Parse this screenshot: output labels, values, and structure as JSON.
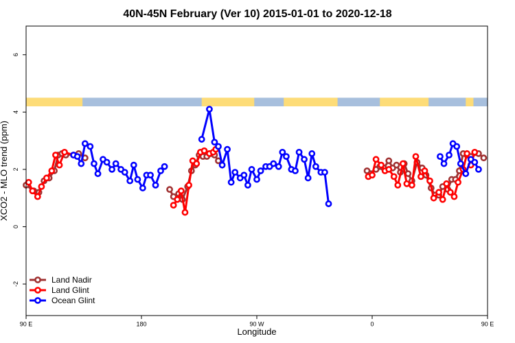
{
  "chart_data": {
    "type": "line",
    "title": "40N-45N February (Ver 10)   2015-01-01 to 2020-12-18",
    "xlabel": "Longitude",
    "ylabel": "XCO2 - MLO trend (ppm)",
    "xlim": [
      90,
      450
    ],
    "ylim": [
      -3.1,
      7.0
    ],
    "x_ticks": [
      {
        "value": 90,
        "label": "90 E"
      },
      {
        "value": 180,
        "label": "180"
      },
      {
        "value": 270,
        "label": "90 W"
      },
      {
        "value": 360,
        "label": "0"
      },
      {
        "value": 450,
        "label": "90 E"
      }
    ],
    "y_ticks": [
      -2,
      0,
      2,
      4,
      6
    ],
    "land_mask_band": {
      "y_range": [
        4.2,
        4.5
      ],
      "ocean_color": "#a7bfdd",
      "land_color": "#fddc78",
      "land_segments": [
        [
          90,
          134
        ],
        [
          227,
          268
        ],
        [
          291,
          333
        ],
        [
          366,
          404
        ],
        [
          433,
          439
        ]
      ]
    },
    "legend_position": "bottom-left",
    "series": [
      {
        "name": "Land Nadir",
        "color": "#a03232",
        "points": [
          [
            90,
            1.45
          ],
          [
            96,
            1.25
          ],
          [
            100,
            1.2
          ],
          [
            104,
            1.6
          ],
          [
            108,
            1.7
          ],
          [
            112,
            1.95
          ],
          [
            115,
            2.5
          ],
          [
            118,
            2.55
          ],
          [
            121,
            2.5
          ],
          [
            131,
            2.55
          ],
          [
            136,
            2.4
          ],
          [
            202,
            1.3
          ],
          [
            205,
            1.05
          ],
          [
            209,
            1.15
          ],
          [
            212,
            0.95
          ],
          [
            216,
            1.4
          ],
          [
            219,
            1.95
          ],
          [
            222,
            2.15
          ],
          [
            225,
            2.5
          ],
          [
            228,
            2.45
          ],
          [
            231,
            2.45
          ],
          [
            234,
            2.55
          ],
          [
            237,
            2.5
          ],
          [
            240,
            2.3
          ],
          [
            356,
            1.95
          ],
          [
            359,
            1.85
          ],
          [
            363,
            2.0
          ],
          [
            366,
            2.1
          ],
          [
            369,
            2.05
          ],
          [
            373,
            2.3
          ],
          [
            376,
            2.05
          ],
          [
            379,
            2.15
          ],
          [
            382,
            1.9
          ],
          [
            385,
            2.2
          ],
          [
            388,
            1.85
          ],
          [
            391,
            1.6
          ],
          [
            395,
            2.25
          ],
          [
            399,
            2.05
          ],
          [
            402,
            1.8
          ],
          [
            406,
            1.35
          ],
          [
            409,
            1.1
          ],
          [
            412,
            1.1
          ],
          [
            415,
            1.4
          ],
          [
            419,
            1.3
          ],
          [
            422,
            1.65
          ],
          [
            425,
            1.65
          ],
          [
            428,
            1.95
          ],
          [
            431,
            2.55
          ],
          [
            434,
            2.5
          ],
          [
            437,
            2.45
          ],
          [
            443,
            2.55
          ],
          [
            447,
            2.4
          ]
        ]
      },
      {
        "name": "Land Glint",
        "color": "#ff0000",
        "points": [
          [
            92,
            1.55
          ],
          [
            95,
            1.25
          ],
          [
            99,
            1.05
          ],
          [
            102,
            1.4
          ],
          [
            106,
            1.7
          ],
          [
            110,
            1.95
          ],
          [
            113,
            2.5
          ],
          [
            116,
            2.15
          ],
          [
            120,
            2.6
          ],
          [
            127,
            2.5
          ],
          [
            205,
            0.75
          ],
          [
            208,
            0.95
          ],
          [
            211,
            1.25
          ],
          [
            214,
            0.5
          ],
          [
            217,
            1.45
          ],
          [
            220,
            2.3
          ],
          [
            223,
            2.2
          ],
          [
            226,
            2.6
          ],
          [
            229,
            2.65
          ],
          [
            233,
            2.55
          ],
          [
            236,
            2.6
          ],
          [
            238,
            2.7
          ],
          [
            357,
            1.75
          ],
          [
            360,
            1.8
          ],
          [
            363,
            2.35
          ],
          [
            367,
            2.15
          ],
          [
            370,
            1.95
          ],
          [
            373,
            2.0
          ],
          [
            377,
            1.75
          ],
          [
            380,
            1.45
          ],
          [
            384,
            2.2
          ],
          [
            387,
            1.5
          ],
          [
            391,
            1.45
          ],
          [
            394,
            2.45
          ],
          [
            398,
            1.75
          ],
          [
            401,
            1.95
          ],
          [
            405,
            1.6
          ],
          [
            408,
            1.0
          ],
          [
            412,
            1.2
          ],
          [
            415,
            0.95
          ],
          [
            418,
            1.5
          ],
          [
            421,
            1.2
          ],
          [
            424,
            1.05
          ],
          [
            427,
            1.55
          ],
          [
            431,
            2.0
          ],
          [
            434,
            2.55
          ],
          [
            437,
            2.15
          ],
          [
            440,
            2.6
          ]
        ]
      },
      {
        "name": "Ocean Glint",
        "color": "#0000ff",
        "points": [
          [
            127,
            2.5
          ],
          [
            130,
            2.45
          ],
          [
            133,
            2.2
          ],
          [
            136,
            2.9
          ],
          [
            140,
            2.8
          ],
          [
            143,
            2.2
          ],
          [
            146,
            1.85
          ],
          [
            150,
            2.35
          ],
          [
            153,
            2.25
          ],
          [
            157,
            2.0
          ],
          [
            160,
            2.2
          ],
          [
            164,
            2.0
          ],
          [
            167,
            1.9
          ],
          [
            171,
            1.6
          ],
          [
            174,
            2.15
          ],
          [
            177,
            1.65
          ],
          [
            181,
            1.35
          ],
          [
            184,
            1.8
          ],
          [
            187,
            1.8
          ],
          [
            191,
            1.45
          ],
          [
            195,
            1.95
          ],
          [
            198,
            2.1
          ],
          [
            227,
            3.05
          ],
          [
            233,
            4.1
          ],
          [
            237,
            2.95
          ],
          [
            240,
            2.8
          ],
          [
            243,
            2.15
          ],
          [
            247,
            2.7
          ],
          [
            250,
            1.55
          ],
          [
            253,
            1.9
          ],
          [
            257,
            1.7
          ],
          [
            260,
            1.8
          ],
          [
            263,
            1.45
          ],
          [
            266,
            2.0
          ],
          [
            270,
            1.65
          ],
          [
            273,
            1.95
          ],
          [
            277,
            2.1
          ],
          [
            280,
            2.1
          ],
          [
            283,
            2.2
          ],
          [
            287,
            2.1
          ],
          [
            290,
            2.6
          ],
          [
            293,
            2.45
          ],
          [
            297,
            2.0
          ],
          [
            300,
            1.95
          ],
          [
            303,
            2.6
          ],
          [
            307,
            2.35
          ],
          [
            310,
            1.7
          ],
          [
            313,
            2.55
          ],
          [
            316,
            2.1
          ],
          [
            320,
            1.9
          ],
          [
            323,
            1.9
          ],
          [
            326,
            0.8
          ],
          [
            413,
            2.45
          ],
          [
            416,
            2.2
          ],
          [
            420,
            2.5
          ],
          [
            423,
            2.9
          ],
          [
            426,
            2.8
          ],
          [
            429,
            2.2
          ],
          [
            433,
            1.85
          ],
          [
            437,
            2.35
          ],
          [
            440,
            2.25
          ],
          [
            443,
            2.0
          ]
        ]
      }
    ]
  }
}
